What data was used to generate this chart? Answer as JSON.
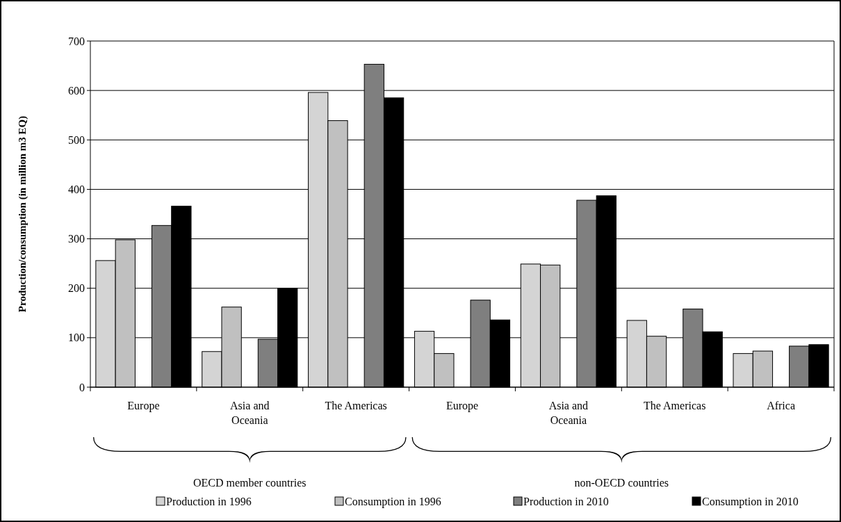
{
  "chart_data": {
    "type": "bar",
    "ylabel": "Production/consumption (in million m3 EQ)",
    "categories": [
      "Europe",
      "Asia and Oceania",
      "The Americas",
      "Europe",
      "Asia and Oceania",
      "The Americas",
      "Africa"
    ],
    "series": [
      {
        "name": "Production in 1996",
        "color": "#d4d4d4",
        "values": [
          256,
          72,
          596,
          113,
          249,
          135,
          68
        ]
      },
      {
        "name": "Consumption in 1996",
        "color": "#c0c0c0",
        "values": [
          298,
          162,
          539,
          68,
          247,
          103,
          73
        ]
      },
      {
        "name": "Production in 2010",
        "color": "#7f7f7f",
        "values": [
          327,
          97,
          653,
          176,
          378,
          158,
          83
        ]
      },
      {
        "name": "Consumption in 2010",
        "color": "#000000",
        "values": [
          366,
          200,
          585,
          136,
          387,
          112,
          86
        ]
      }
    ],
    "ylim": [
      0,
      700
    ],
    "yticks": [
      0,
      100,
      200,
      300,
      400,
      500,
      600,
      700
    ],
    "grid": "y",
    "legend": "bottom",
    "annotations": [
      "OECD member countries",
      "non-OECD countries"
    ]
  }
}
